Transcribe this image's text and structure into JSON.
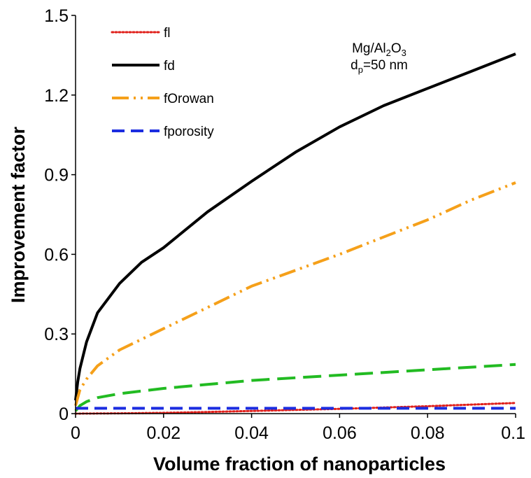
{
  "chart_data": {
    "type": "line",
    "xlabel": "Volume fraction of nanoparticles",
    "ylabel": "Improvement factor",
    "xlim": [
      0,
      0.1
    ],
    "ylim": [
      0,
      1.5
    ],
    "x_ticks": [
      "0",
      "0.02",
      "0.04",
      "0.06",
      "0.08",
      "0.1"
    ],
    "y_ticks": [
      "0",
      "0.3",
      "0.6",
      "0.9",
      "1.2",
      "1.5"
    ],
    "grid": false,
    "legend_position": "top-left",
    "annotation": {
      "material_prefix": "Mg/Al",
      "material_sub1": "2",
      "material_mid": "O",
      "material_sub2": "3",
      "size_prefix": "d",
      "size_sub": "p",
      "size_suffix": "=50 nm"
    },
    "series": [
      {
        "name": "fl",
        "color": "#e0201b",
        "style": "dotted",
        "x": [
          0,
          0.01,
          0.02,
          0.03,
          0.04,
          0.05,
          0.06,
          0.07,
          0.08,
          0.09,
          0.1
        ],
        "y": [
          0,
          0.001,
          0.003,
          0.006,
          0.01,
          0.014,
          0.018,
          0.023,
          0.028,
          0.034,
          0.04
        ]
      },
      {
        "name": "fd",
        "color": "#000000",
        "style": "solid",
        "x": [
          0,
          0.0005,
          0.001,
          0.0025,
          0.005,
          0.01,
          0.015,
          0.02,
          0.03,
          0.04,
          0.05,
          0.06,
          0.07,
          0.08,
          0.09,
          0.1
        ],
        "y": [
          0.05,
          0.12,
          0.17,
          0.27,
          0.38,
          0.49,
          0.57,
          0.625,
          0.76,
          0.875,
          0.985,
          1.08,
          1.16,
          1.225,
          1.29,
          1.355
        ]
      },
      {
        "name": "fOrowan",
        "color": "#f5a01a",
        "style": "dashdotdot",
        "x": [
          0,
          0.001,
          0.0025,
          0.005,
          0.01,
          0.02,
          0.03,
          0.04,
          0.05,
          0.06,
          0.07,
          0.08,
          0.09,
          0.1
        ],
        "y": [
          0.03,
          0.09,
          0.13,
          0.18,
          0.24,
          0.32,
          0.4,
          0.48,
          0.54,
          0.6,
          0.665,
          0.73,
          0.805,
          0.87
        ]
      },
      {
        "name": "fporosity",
        "color": "#1c2de0",
        "style": "dashed",
        "x": [
          0,
          0.1
        ],
        "y": [
          0.02,
          0.02
        ]
      },
      {
        "color": "#22bb22",
        "style": "longdash",
        "x": [
          0,
          0.001,
          0.0025,
          0.005,
          0.01,
          0.02,
          0.03,
          0.04,
          0.05,
          0.06,
          0.07,
          0.08,
          0.09,
          0.1
        ],
        "y": [
          0.01,
          0.03,
          0.045,
          0.06,
          0.075,
          0.095,
          0.11,
          0.125,
          0.135,
          0.145,
          0.155,
          0.165,
          0.175,
          0.185
        ]
      }
    ]
  }
}
